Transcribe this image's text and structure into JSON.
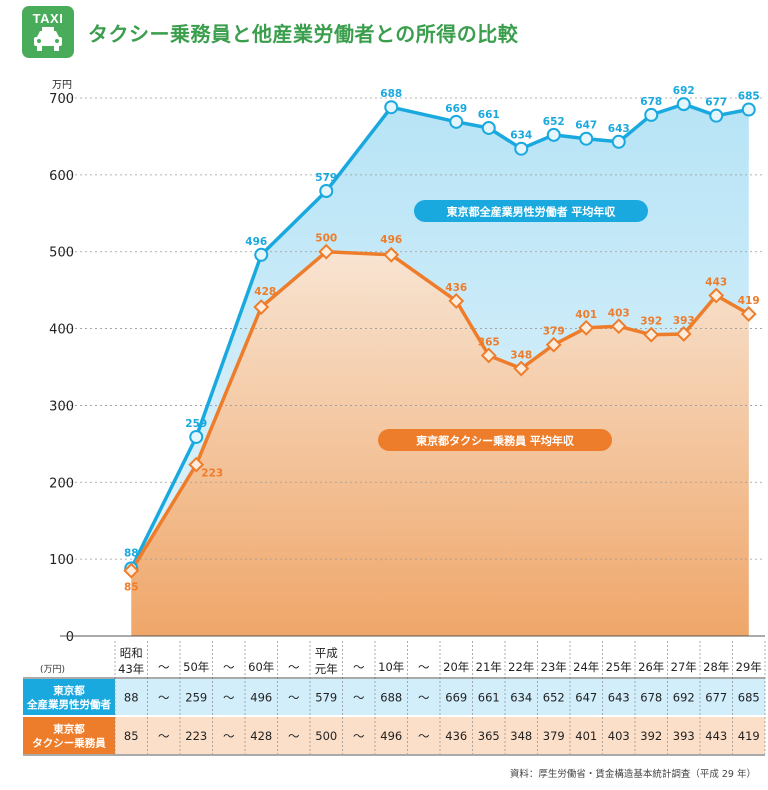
{
  "badge": {
    "label": "TAXI",
    "icon": "taxi-icon",
    "color": "#49ac5a"
  },
  "title": "タクシー乗務員と他産業労働者との所得の比較",
  "source": "資料：厚生労働省・賃金構造基本統計調査（平成 29 年）",
  "table": {
    "unit_label": "(万円)",
    "row_labels": [
      "東京都\n全産業男性労働者",
      "東京都\nタクシー乗務員"
    ]
  },
  "chart_data": {
    "type": "line",
    "ylabel": "万円",
    "ylim": [
      0,
      700
    ],
    "yticks": [
      0,
      100,
      200,
      300,
      400,
      500,
      600,
      700
    ],
    "grid": true,
    "categories": [
      "昭和\n43年",
      "〜",
      "50年",
      "〜",
      "60年",
      "〜",
      "平成\n元年",
      "〜",
      "10年",
      "〜",
      "20年",
      "21年",
      "22年",
      "23年",
      "24年",
      "25年",
      "26年",
      "27年",
      "28年",
      "29年"
    ],
    "series": [
      {
        "name": "東京都全産業男性労働者 平均年収",
        "color": "#1aa9df",
        "marker": "circle",
        "values": [
          88,
          null,
          259,
          null,
          496,
          null,
          579,
          null,
          688,
          null,
          669,
          661,
          634,
          652,
          647,
          643,
          678,
          692,
          677,
          685
        ]
      },
      {
        "name": "東京都タクシー乗務員 平均年収",
        "color": "#ee7d2b",
        "marker": "diamond",
        "values": [
          85,
          null,
          223,
          null,
          428,
          null,
          500,
          null,
          496,
          null,
          436,
          365,
          348,
          379,
          401,
          403,
          392,
          393,
          443,
          419
        ]
      }
    ]
  }
}
